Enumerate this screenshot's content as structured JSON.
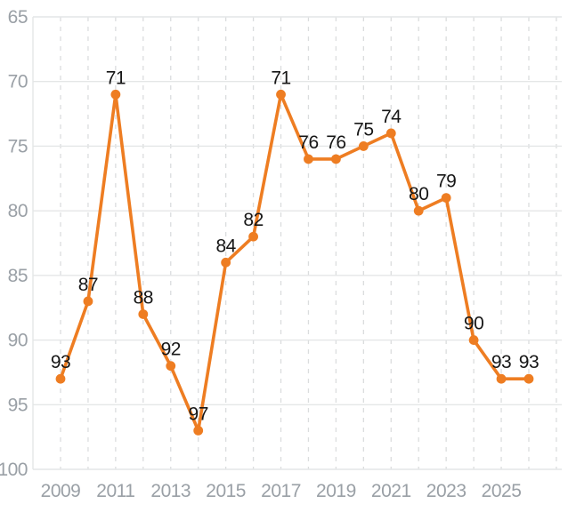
{
  "chart_data": {
    "type": "line",
    "title": "",
    "xlabel": "",
    "ylabel": "",
    "x": [
      2009,
      2010,
      2011,
      2012,
      2013,
      2014,
      2015,
      2016,
      2017,
      2018,
      2019,
      2020,
      2021,
      2022,
      2023,
      2024,
      2025,
      2026
    ],
    "values": [
      93,
      87,
      71,
      88,
      92,
      97,
      84,
      82,
      71,
      76,
      76,
      75,
      74,
      80,
      79,
      90,
      93,
      93
    ],
    "data_labels": [
      "93",
      "87",
      "71",
      "88",
      "92",
      "97",
      "84",
      "82",
      "71",
      "76",
      "76",
      "75",
      "74",
      "80",
      "79",
      "90",
      "93",
      "93"
    ],
    "y_ticks": [
      65,
      70,
      75,
      80,
      85,
      90,
      95,
      100
    ],
    "x_tick_labels": [
      "2009",
      "2011",
      "2013",
      "2015",
      "2017",
      "2019",
      "2021",
      "2023",
      "2025"
    ],
    "ylim": [
      65,
      100
    ],
    "y_axis_inverted": true,
    "legend": "none",
    "grid": {
      "horizontal": "solid",
      "vertical": "dashed"
    },
    "marker": "circle",
    "colors": {
      "line": "#EE7D22",
      "marker": "#EE7D22",
      "data_label": "#161616",
      "axis_label": "#9AA0A6",
      "grid_horizontal": "#E4E6E7",
      "grid_vertical": "#DBDDDE",
      "background": "#FFFFFF"
    }
  }
}
